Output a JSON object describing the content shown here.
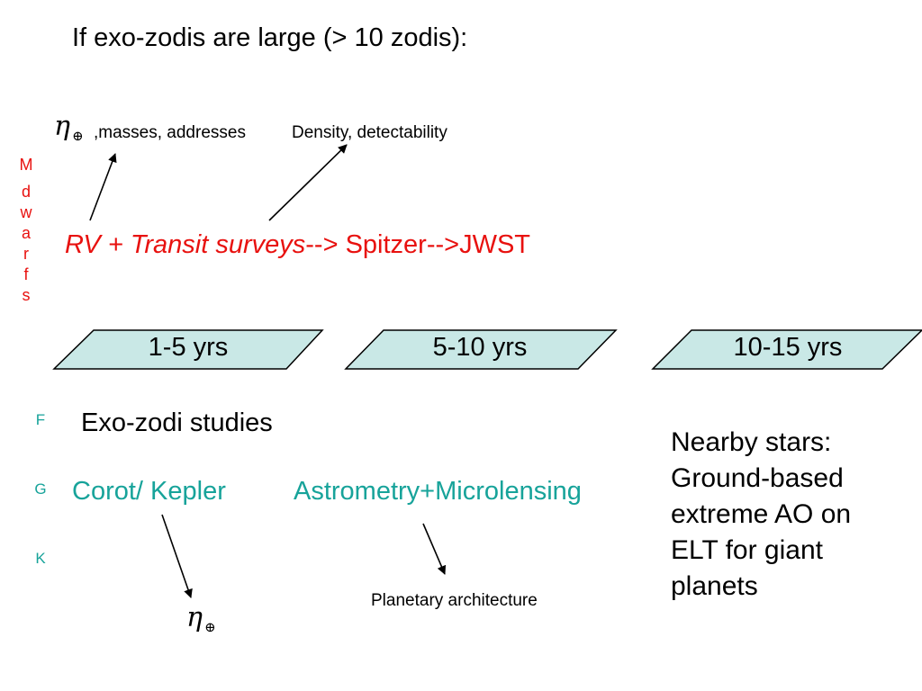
{
  "slide": {
    "title": "If  exo-zodis are large (> 10 zodis):",
    "eta_symbol": "η",
    "eta_subscript": "⊕",
    "masses_label": ",masses, addresses",
    "density_label": "Density, detectability",
    "m_dwarfs_letters": [
      "M",
      "d",
      "w",
      "a",
      "r",
      "f",
      "s"
    ],
    "rv_line": {
      "rv": "RV  +  ",
      "transit": "Transit surveys",
      "rest": "--> Spitzer-->JWST"
    },
    "timeline": [
      "1-5 yrs",
      "5-10 yrs",
      "10-15 yrs"
    ],
    "fgk_letters": [
      "F",
      "G",
      "K"
    ],
    "exozodi_label": "Exo-zodi studies",
    "corot_label": "Corot/ Kepler",
    "astrometry_label": "Astrometry+Microlensing",
    "planetary_label": "Planetary architecture",
    "nearby_lines": [
      "Nearby stars:",
      "Ground-based",
      "extreme AO on",
      "ELT for giant",
      "planets"
    ],
    "colors": {
      "red_text": "#e8110f",
      "teal_text": "#17a39a",
      "band_fill": "#c9e8e6",
      "band_stroke": "#000000"
    }
  }
}
